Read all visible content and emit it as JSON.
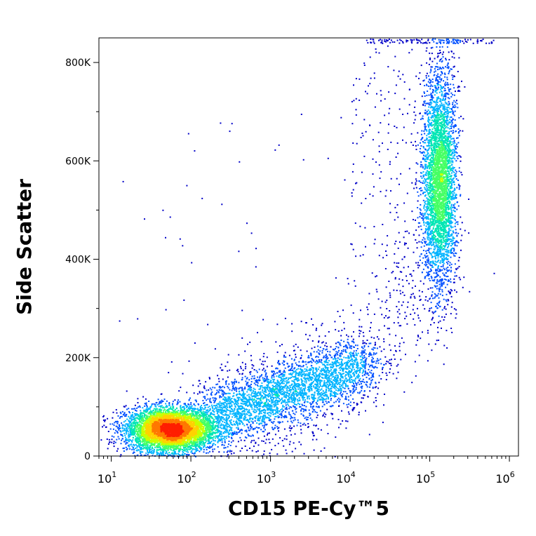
{
  "chart_data": {
    "type": "scatter",
    "xlabel": "CD15 PE-Cy™5",
    "ylabel": "Side Scatter",
    "x_scale": "log",
    "xlim": [
      7,
      1300000
    ],
    "ylim": [
      0,
      850000
    ],
    "x_ticks": [
      {
        "value": 10,
        "base": "10",
        "exp": "1"
      },
      {
        "value": 100,
        "base": "10",
        "exp": "2"
      },
      {
        "value": 1000,
        "base": "10",
        "exp": "3"
      },
      {
        "value": 10000,
        "base": "10",
        "exp": "4"
      },
      {
        "value": 100000,
        "base": "10",
        "exp": "5"
      },
      {
        "value": 1000000,
        "base": "10",
        "exp": "6"
      }
    ],
    "y_ticks": [
      {
        "value": 0,
        "label": "0"
      },
      {
        "value": 200000,
        "label": "200K"
      },
      {
        "value": 400000,
        "label": "400K"
      },
      {
        "value": 600000,
        "label": "600K"
      },
      {
        "value": 800000,
        "label": "800K"
      }
    ],
    "grid": false,
    "density_colormap": [
      "#0000c8",
      "#0050ff",
      "#00b4ff",
      "#00e6b4",
      "#46ff64",
      "#c8ff00",
      "#ffd200",
      "#ff7800",
      "#ff1e00"
    ],
    "populations": [
      {
        "center_x": 55,
        "center_y": 55000,
        "spread_log_x": 0.28,
        "spread_y": 22000
      },
      {
        "center_x": 2500,
        "center_y": 140000,
        "spread_log_x": 0.45,
        "spread_y": 35000
      },
      {
        "center_x": 130000,
        "center_y": 560000,
        "spread_log_x": 0.1,
        "spread_y": 110000
      }
    ]
  }
}
